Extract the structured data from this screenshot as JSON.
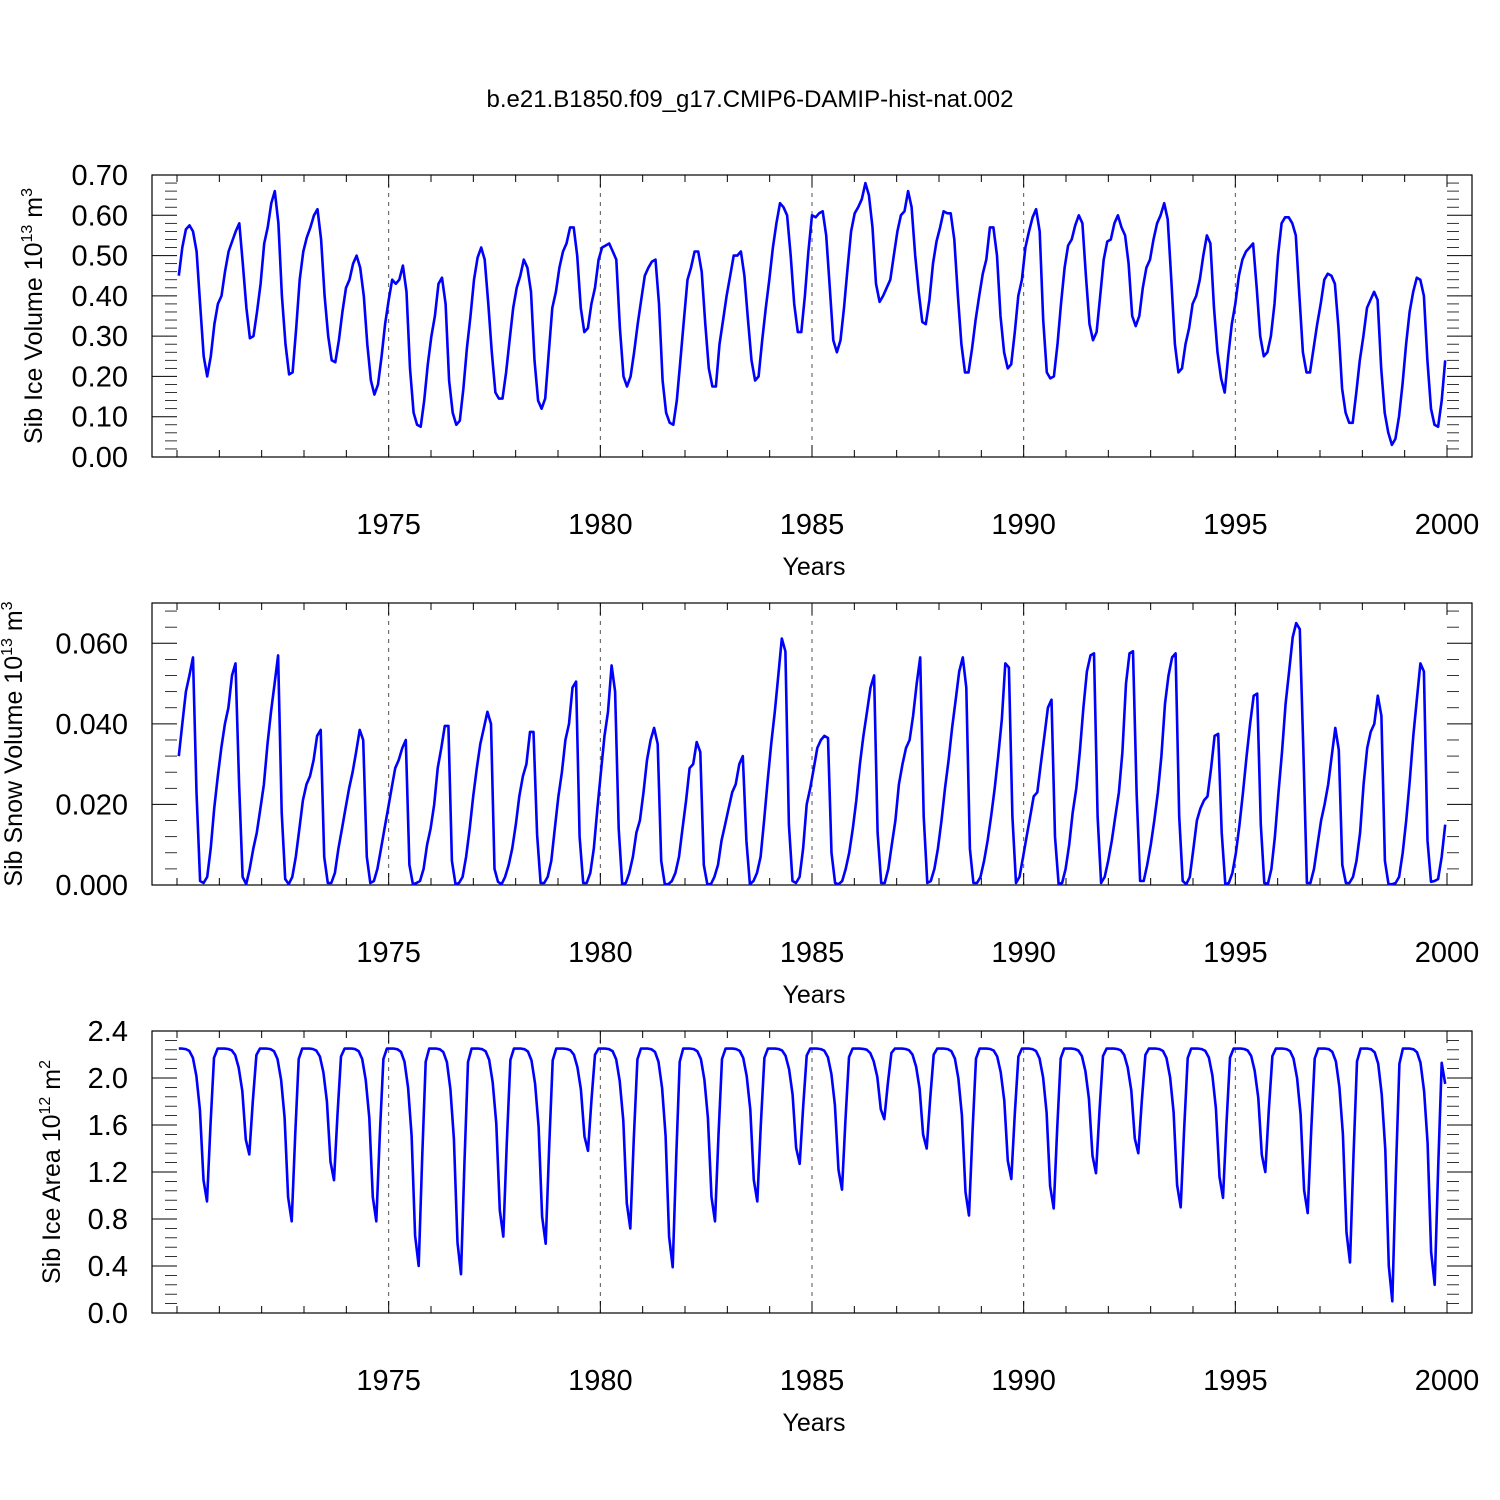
{
  "title": "b.e21.B1850.f09_g17.CMIP6-DAMIP-hist-nat.002",
  "chart_data": [
    {
      "type": "line",
      "ylabel_main": "Sib Ice Volume 10",
      "ylabel_exp1": "13",
      "ylabel_unit": " m",
      "ylabel_exp2": "3",
      "xlabel": "Years",
      "xlim": [
        1970.0,
        2000.0
      ],
      "ylim": [
        0.0,
        0.7
      ],
      "yticks": [
        0.0,
        0.1,
        0.2,
        0.3,
        0.4,
        0.5,
        0.6,
        0.7
      ],
      "ytick_labels": [
        "0.00",
        "0.10",
        "0.20",
        "0.30",
        "0.40",
        "0.50",
        "0.60",
        "0.70"
      ],
      "xticks": [
        1975,
        1980,
        1985,
        1990,
        1995,
        2000
      ],
      "xtick_labels": [
        "1975",
        "1980",
        "1985",
        "1990",
        "1995",
        "2000"
      ],
      "line_color": "#0000ff",
      "series": [
        {
          "values": [
            0.45,
            0.52,
            0.565,
            0.575,
            0.56,
            0.51,
            0.38,
            0.25,
            0.2,
            0.25,
            0.33,
            0.38,
            0.4,
            0.46,
            0.51,
            0.535,
            0.56,
            0.58,
            0.48,
            0.37,
            0.295,
            0.3,
            0.36,
            0.43,
            0.53,
            0.57,
            0.63,
            0.66,
            0.58,
            0.4,
            0.28,
            0.205,
            0.21,
            0.32,
            0.44,
            0.51,
            0.545,
            0.57,
            0.6,
            0.615,
            0.54,
            0.4,
            0.3,
            0.24,
            0.235,
            0.29,
            0.36,
            0.42,
            0.44,
            0.48,
            0.5,
            0.47,
            0.4,
            0.28,
            0.19,
            0.155,
            0.18,
            0.25,
            0.33,
            0.39,
            0.44,
            0.43,
            0.44,
            0.475,
            0.41,
            0.22,
            0.11,
            0.08,
            0.075,
            0.14,
            0.23,
            0.3,
            0.35,
            0.43,
            0.445,
            0.38,
            0.19,
            0.11,
            0.08,
            0.09,
            0.17,
            0.27,
            0.35,
            0.44,
            0.495,
            0.52,
            0.49,
            0.38,
            0.26,
            0.16,
            0.145,
            0.145,
            0.21,
            0.29,
            0.37,
            0.42,
            0.45,
            0.49,
            0.47,
            0.41,
            0.24,
            0.14,
            0.12,
            0.145,
            0.26,
            0.37,
            0.41,
            0.47,
            0.51,
            0.53,
            0.57,
            0.57,
            0.5,
            0.37,
            0.31,
            0.32,
            0.38,
            0.42,
            0.49,
            0.52,
            0.525,
            0.53,
            0.51,
            0.49,
            0.32,
            0.2,
            0.175,
            0.2,
            0.26,
            0.33,
            0.39,
            0.45,
            0.47,
            0.485,
            0.49,
            0.38,
            0.19,
            0.11,
            0.085,
            0.08,
            0.14,
            0.24,
            0.34,
            0.44,
            0.47,
            0.51,
            0.51,
            0.46,
            0.33,
            0.22,
            0.175,
            0.175,
            0.28,
            0.34,
            0.4,
            0.45,
            0.5,
            0.5,
            0.51,
            0.45,
            0.34,
            0.24,
            0.19,
            0.2,
            0.29,
            0.37,
            0.44,
            0.52,
            0.58,
            0.63,
            0.62,
            0.6,
            0.5,
            0.38,
            0.31,
            0.31,
            0.4,
            0.51,
            0.6,
            0.595,
            0.605,
            0.61,
            0.55,
            0.42,
            0.29,
            0.26,
            0.29,
            0.37,
            0.47,
            0.56,
            0.605,
            0.62,
            0.64,
            0.68,
            0.65,
            0.57,
            0.43,
            0.385,
            0.4,
            0.42,
            0.44,
            0.5,
            0.56,
            0.6,
            0.61,
            0.66,
            0.62,
            0.5,
            0.41,
            0.335,
            0.33,
            0.39,
            0.48,
            0.535,
            0.57,
            0.61,
            0.605,
            0.605,
            0.54,
            0.4,
            0.28,
            0.21,
            0.21,
            0.27,
            0.34,
            0.4,
            0.455,
            0.49,
            0.57,
            0.57,
            0.5,
            0.35,
            0.26,
            0.22,
            0.23,
            0.31,
            0.4,
            0.44,
            0.52,
            0.56,
            0.595,
            0.615,
            0.56,
            0.34,
            0.21,
            0.195,
            0.2,
            0.28,
            0.38,
            0.47,
            0.525,
            0.54,
            0.575,
            0.6,
            0.58,
            0.45,
            0.33,
            0.29,
            0.31,
            0.4,
            0.49,
            0.535,
            0.54,
            0.58,
            0.6,
            0.57,
            0.55,
            0.48,
            0.35,
            0.325,
            0.35,
            0.42,
            0.47,
            0.49,
            0.54,
            0.58,
            0.6,
            0.63,
            0.59,
            0.44,
            0.28,
            0.21,
            0.22,
            0.28,
            0.32,
            0.38,
            0.4,
            0.44,
            0.5,
            0.55,
            0.53,
            0.37,
            0.26,
            0.195,
            0.16,
            0.25,
            0.33,
            0.38,
            0.45,
            0.49,
            0.51,
            0.52,
            0.53,
            0.42,
            0.3,
            0.25,
            0.26,
            0.3,
            0.38,
            0.5,
            0.58,
            0.595,
            0.595,
            0.58,
            0.55,
            0.4,
            0.26,
            0.21,
            0.21,
            0.27,
            0.33,
            0.38,
            0.44,
            0.455,
            0.45,
            0.43,
            0.32,
            0.17,
            0.11,
            0.085,
            0.085,
            0.16,
            0.24,
            0.3,
            0.37,
            0.39,
            0.41,
            0.39,
            0.22,
            0.11,
            0.06,
            0.03,
            0.045,
            0.1,
            0.18,
            0.28,
            0.36,
            0.41,
            0.445,
            0.44,
            0.4,
            0.24,
            0.12,
            0.08,
            0.075,
            0.14,
            0.24
          ]
        }
      ]
    },
    {
      "type": "line",
      "ylabel_main": "Sib Snow Volume 10",
      "ylabel_exp1": "13",
      "ylabel_unit": " m",
      "ylabel_exp2": "3",
      "xlabel": "Years",
      "xlim": [
        1970.0,
        2000.0
      ],
      "ylim": [
        0.0,
        0.07
      ],
      "yticks": [
        0.0,
        0.02,
        0.04,
        0.06
      ],
      "ytick_labels": [
        "0.000",
        "0.020",
        "0.040",
        "0.060"
      ],
      "xticks": [
        1975,
        1980,
        1985,
        1990,
        1995,
        2000
      ],
      "xtick_labels": [
        "1975",
        "1980",
        "1985",
        "1990",
        "1995",
        "2000"
      ],
      "line_color": "#0000ff",
      "series": [
        {
          "values": [
            0.032,
            0.04,
            0.048,
            0.052,
            0.0565,
            0.023,
            0.001,
            0.0005,
            0.002,
            0.009,
            0.019,
            0.027,
            0.034,
            0.04,
            0.044,
            0.052,
            0.055,
            0.025,
            0.002,
            0.0002,
            0.004,
            0.009,
            0.013,
            0.019,
            0.025,
            0.035,
            0.043,
            0.05,
            0.057,
            0.018,
            0.0015,
            0.0002,
            0.002,
            0.007,
            0.014,
            0.021,
            0.025,
            0.027,
            0.031,
            0.037,
            0.0385,
            0.007,
            0.0005,
            0.0005,
            0.003,
            0.009,
            0.014,
            0.019,
            0.024,
            0.028,
            0.033,
            0.0385,
            0.036,
            0.007,
            0.0005,
            0.001,
            0.004,
            0.009,
            0.014,
            0.019,
            0.024,
            0.029,
            0.031,
            0.034,
            0.036,
            0.005,
            0.0002,
            0.0005,
            0.001,
            0.004,
            0.01,
            0.014,
            0.02,
            0.029,
            0.034,
            0.0395,
            0.0395,
            0.006,
            0.0002,
            0.0005,
            0.002,
            0.007,
            0.014,
            0.022,
            0.029,
            0.035,
            0.039,
            0.043,
            0.04,
            0.004,
            0.0008,
            0.0002,
            0.002,
            0.005,
            0.009,
            0.015,
            0.022,
            0.027,
            0.03,
            0.038,
            0.038,
            0.0125,
            0.0005,
            0.0005,
            0.002,
            0.006,
            0.014,
            0.022,
            0.028,
            0.036,
            0.04,
            0.049,
            0.0505,
            0.012,
            0.0005,
            0.0005,
            0.003,
            0.009,
            0.019,
            0.028,
            0.037,
            0.043,
            0.0545,
            0.048,
            0.014,
            0.0002,
            0.0005,
            0.003,
            0.007,
            0.013,
            0.016,
            0.023,
            0.031,
            0.036,
            0.039,
            0.035,
            0.006,
            0.0002,
            0.0002,
            0.001,
            0.003,
            0.007,
            0.014,
            0.021,
            0.029,
            0.03,
            0.0355,
            0.033,
            0.005,
            0.0002,
            0.0002,
            0.002,
            0.005,
            0.011,
            0.015,
            0.019,
            0.023,
            0.025,
            0.03,
            0.032,
            0.011,
            0.0002,
            0.001,
            0.003,
            0.007,
            0.016,
            0.026,
            0.035,
            0.043,
            0.052,
            0.0612,
            0.058,
            0.015,
            0.001,
            0.0005,
            0.002,
            0.009,
            0.02,
            0.024,
            0.029,
            0.034,
            0.036,
            0.037,
            0.0365,
            0.008,
            0.0005,
            0.0002,
            0.001,
            0.004,
            0.008,
            0.014,
            0.021,
            0.03,
            0.037,
            0.043,
            0.049,
            0.052,
            0.013,
            0.0005,
            0.0005,
            0.004,
            0.01,
            0.016,
            0.025,
            0.03,
            0.034,
            0.036,
            0.042,
            0.05,
            0.0565,
            0.017,
            0.0005,
            0.001,
            0.004,
            0.009,
            0.016,
            0.024,
            0.031,
            0.039,
            0.046,
            0.053,
            0.0565,
            0.049,
            0.009,
            0.0005,
            0.0005,
            0.002,
            0.006,
            0.011,
            0.017,
            0.024,
            0.032,
            0.041,
            0.055,
            0.054,
            0.017,
            0.0005,
            0.002,
            0.007,
            0.012,
            0.017,
            0.022,
            0.023,
            0.03,
            0.037,
            0.044,
            0.046,
            0.012,
            0.0003,
            0.0005,
            0.004,
            0.01,
            0.018,
            0.024,
            0.033,
            0.044,
            0.053,
            0.057,
            0.0575,
            0.017,
            0.0005,
            0.002,
            0.006,
            0.011,
            0.017,
            0.023,
            0.033,
            0.05,
            0.0575,
            0.058,
            0.023,
            0.001,
            0.001,
            0.005,
            0.01,
            0.016,
            0.023,
            0.032,
            0.045,
            0.052,
            0.0565,
            0.0575,
            0.017,
            0.001,
            0.0002,
            0.002,
            0.009,
            0.016,
            0.019,
            0.021,
            0.022,
            0.029,
            0.037,
            0.0375,
            0.013,
            0.0002,
            0.0005,
            0.003,
            0.008,
            0.015,
            0.023,
            0.032,
            0.04,
            0.047,
            0.0475,
            0.015,
            0.0005,
            0.0003,
            0.004,
            0.012,
            0.023,
            0.033,
            0.045,
            0.053,
            0.0615,
            0.065,
            0.0635,
            0.034,
            0.0005,
            0.0005,
            0.004,
            0.01,
            0.016,
            0.02,
            0.025,
            0.032,
            0.039,
            0.0335,
            0.005,
            0.0005,
            0.0005,
            0.002,
            0.006,
            0.013,
            0.025,
            0.034,
            0.038,
            0.04,
            0.047,
            0.042,
            0.006,
            0.0002,
            0.0002,
            0.0005,
            0.002,
            0.008,
            0.016,
            0.026,
            0.037,
            0.046,
            0.055,
            0.053,
            0.011,
            0.0008,
            0.001,
            0.0015,
            0.007,
            0.015
          ]
        }
      ]
    },
    {
      "type": "line",
      "ylabel_main": "Sib Ice Area 10",
      "ylabel_exp1": "12",
      "ylabel_unit": " m",
      "ylabel_exp2": "2",
      "xlabel": "Years",
      "xlim": [
        1970.0,
        2000.0
      ],
      "ylim": [
        0.0,
        2.4
      ],
      "yticks": [
        0.0,
        0.4,
        0.8,
        1.2,
        1.6,
        2.0,
        2.4
      ],
      "ytick_labels": [
        "0.0",
        "0.4",
        "0.8",
        "1.2",
        "1.6",
        "2.0",
        "2.4"
      ],
      "xticks": [
        1975,
        1980,
        1985,
        1990,
        1995,
        2000
      ],
      "xtick_labels": [
        "1975",
        "1980",
        "1985",
        "1990",
        "1995",
        "2000"
      ],
      "line_color": "#0000ff",
      "minima": [
        0.95,
        1.35,
        0.78,
        1.13,
        0.78,
        0.4,
        0.33,
        0.65,
        0.59,
        1.38,
        0.72,
        0.39,
        0.78,
        0.95,
        1.27,
        1.05,
        1.65,
        1.4,
        0.83,
        1.14,
        0.89,
        1.19,
        1.36,
        0.9,
        0.98,
        1.2,
        0.85,
        0.43,
        0.1,
        0.24
      ],
      "series": [
        {
          "values": []
        }
      ]
    }
  ]
}
